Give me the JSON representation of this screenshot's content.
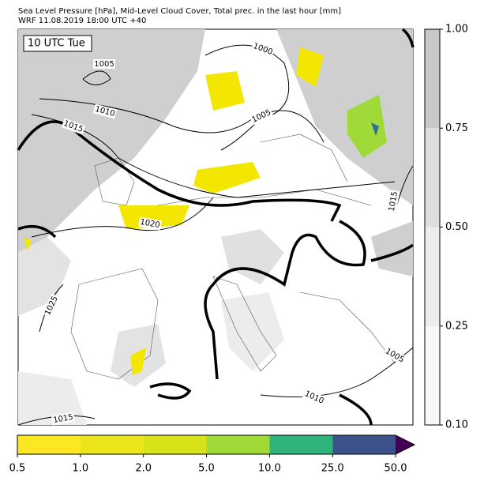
{
  "header": {
    "title_lines": [
      "Sea Level Pressure [hPa], Mid-Level Cloud Cover, Total prec. in the last hour [mm]",
      "WRF 11.08.2019 18:00 UTC +40"
    ]
  },
  "map": {
    "time_label": "10 UTC Tue",
    "isobar_labels": [
      "1005",
      "1000",
      "1010",
      "1005",
      "1015",
      "1020",
      "1015",
      "1025",
      "1010",
      "1015",
      "1005"
    ]
  },
  "cloud_colorbar": {
    "ticks": [
      "0.10",
      "0.25",
      "0.50",
      "0.75",
      "1.00"
    ]
  },
  "precip_colorbar": {
    "ticks": [
      "0.5",
      "1.0",
      "2.0",
      "5.0",
      "10.0",
      "25.0",
      "50.0"
    ]
  }
}
